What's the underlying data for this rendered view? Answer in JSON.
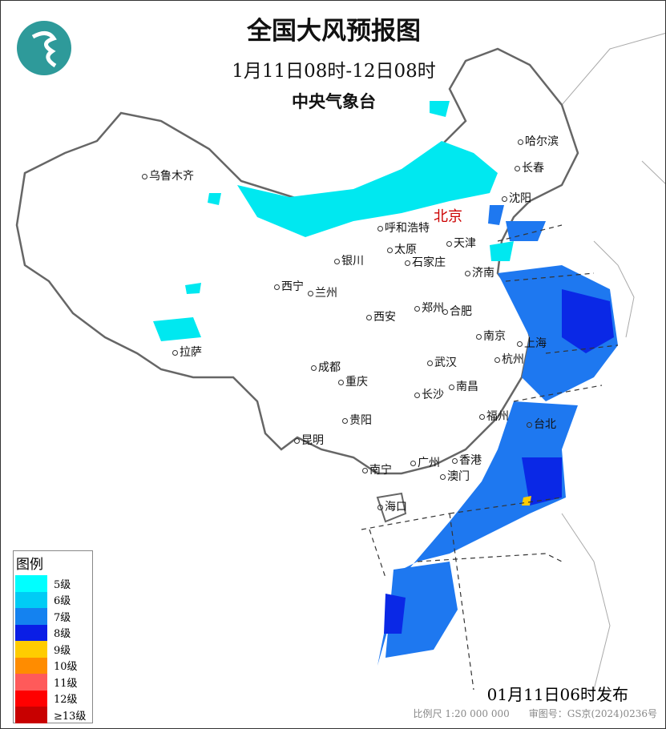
{
  "header": {
    "title": "全国大风预报图",
    "period": "1月11日08时-12日08时",
    "issuer": "中央气象台"
  },
  "map": {
    "capital": "北京",
    "cities": [
      "乌鲁木齐",
      "哈尔滨",
      "长春",
      "沈阳",
      "呼和浩特",
      "天津",
      "太原",
      "石家庄",
      "银川",
      "济南",
      "西宁",
      "兰州",
      "郑州",
      "西安",
      "合肥",
      "南京",
      "上海",
      "拉萨",
      "杭州",
      "成都",
      "武汉",
      "重庆",
      "南昌",
      "长沙",
      "福州",
      "台北",
      "贵阳",
      "昆明",
      "南宁",
      "广州",
      "香港",
      "澳门",
      "海口"
    ],
    "colors": {
      "border": "#777777",
      "level5": "#00f0f0",
      "level6": "#00c8f0",
      "level7": "#1e78f0",
      "level8": "#0a28e6"
    }
  },
  "legend": {
    "title": "图例",
    "items": [
      {
        "label": "5级",
        "color": "#00ffff"
      },
      {
        "label": "6级",
        "color": "#00ccf5"
      },
      {
        "label": "7级",
        "color": "#1482f0"
      },
      {
        "label": "8级",
        "color": "#0a1ee6"
      },
      {
        "label": "9级",
        "color": "#ffcc00"
      },
      {
        "label": "10级",
        "color": "#ff8c00"
      },
      {
        "label": "11级",
        "color": "#ff5a5a"
      },
      {
        "label": "12级",
        "color": "#ff0000"
      },
      {
        "label": "≥13级",
        "color": "#c80000"
      }
    ]
  },
  "footer": {
    "issued": "01月11日06时发布",
    "scale": "比例尺 1:20 000 000",
    "approval": "审图号：GS京(2024)0236号"
  }
}
